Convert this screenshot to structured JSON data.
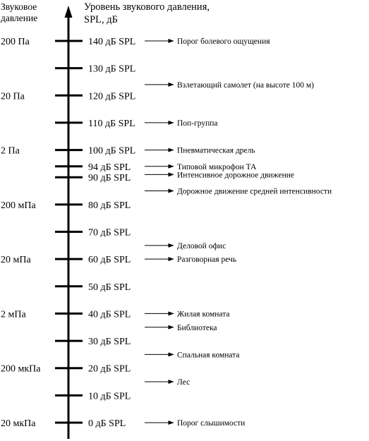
{
  "header": {
    "pressure_title": [
      "Звуковое",
      "давление"
    ],
    "spl_title": [
      "Уровень звукового давления,",
      "SPL, дБ"
    ]
  },
  "pressure_labels": [
    {
      "text": "200 Па",
      "db": 140
    },
    {
      "text": "20 Па",
      "db": 120
    },
    {
      "text": "2 Па",
      "db": 100
    },
    {
      "text": "200 мПа",
      "db": 80
    },
    {
      "text": "20 мПа",
      "db": 60
    },
    {
      "text": "2 мПа",
      "db": 40
    },
    {
      "text": "200 мкПа",
      "db": 20
    },
    {
      "text": "20 мкПа",
      "db": 0
    }
  ],
  "spl_labels": [
    {
      "text": "140 дБ SPL",
      "db": 140
    },
    {
      "text": "130 дБ SPL",
      "db": 130
    },
    {
      "text": "120 дБ SPL",
      "db": 120
    },
    {
      "text": "110 дБ SPL",
      "db": 110
    },
    {
      "text": "100 дБ SPL",
      "db": 100
    },
    {
      "text": "94 дБ SPL",
      "db": 94
    },
    {
      "text": "90 дБ SPL",
      "db": 90
    },
    {
      "text": "80 дБ SPL",
      "db": 80
    },
    {
      "text": "70 дБ SPL",
      "db": 70
    },
    {
      "text": "60 дБ SPL",
      "db": 60
    },
    {
      "text": "50 дБ SPL",
      "db": 50
    },
    {
      "text": "40 дБ SPL",
      "db": 40
    },
    {
      "text": "30 дБ SPL",
      "db": 30
    },
    {
      "text": "20 дБ SPL",
      "db": 20
    },
    {
      "text": "10 дБ SPL",
      "db": 10
    },
    {
      "text": "0 дБ SPL",
      "db": 0
    }
  ],
  "sources": [
    {
      "text": "Порог болевого ощущения",
      "db": 140
    },
    {
      "text": "Взлетающий самолет (на высоте 100 м)",
      "db": 124
    },
    {
      "text": "Поп-группа",
      "db": 110
    },
    {
      "text": "Пневматическая дрель",
      "db": 100
    },
    {
      "text": "Типовой микрофон ТА",
      "db": 94
    },
    {
      "text": "Интенсивное дорожное движение",
      "db": 91
    },
    {
      "text": "Дорожное движение средней интенсивности",
      "db": 85
    },
    {
      "text": "Деловой офис",
      "db": 65
    },
    {
      "text": "Разговорная речь",
      "db": 60
    },
    {
      "text": "Жилая комната",
      "db": 40
    },
    {
      "text": "Библиотека",
      "db": 35
    },
    {
      "text": "Спальная комната",
      "db": 25
    },
    {
      "text": "Лес",
      "db": 15
    },
    {
      "text": "Порог слышимости",
      "db": 0
    }
  ]
}
